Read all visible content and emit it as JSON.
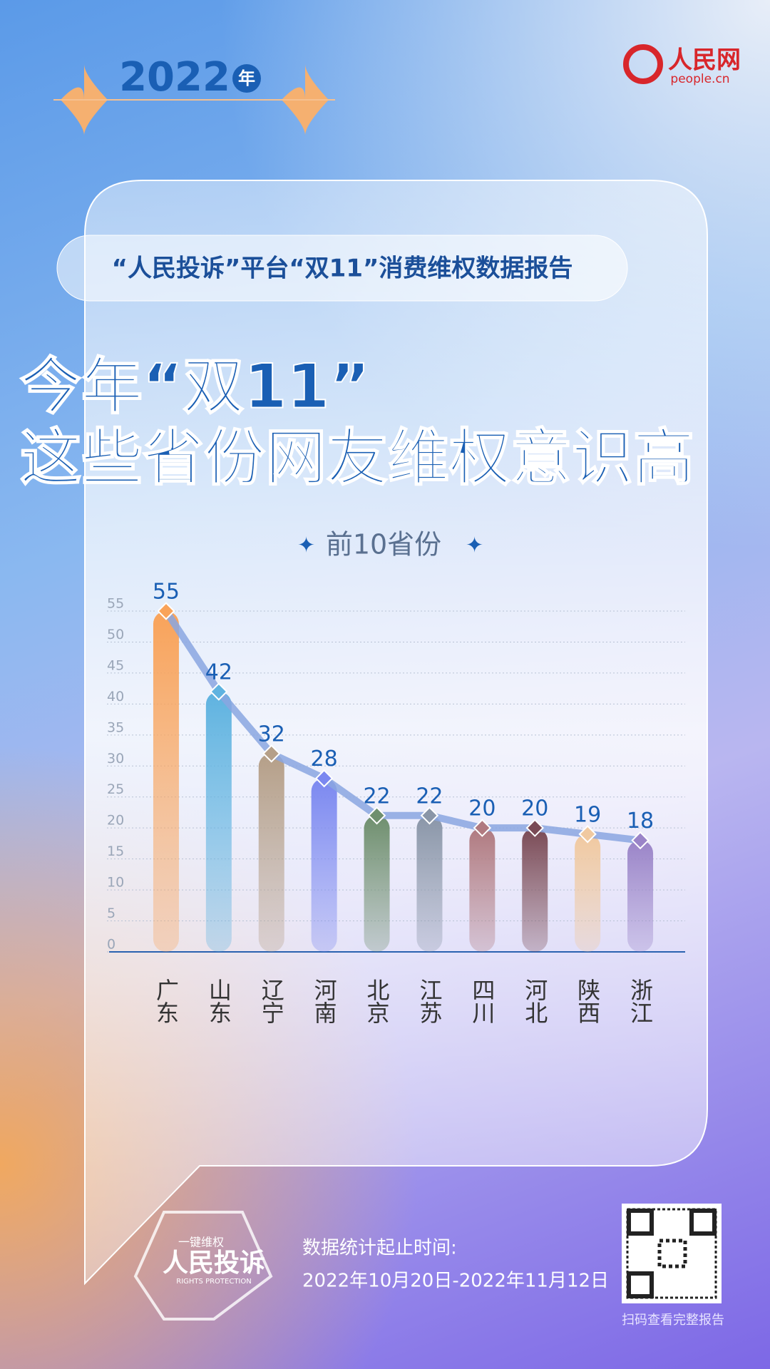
{
  "header": {
    "year": "2022",
    "year_suffix": "年",
    "logo": "人民网",
    "logo_url": "people.cn"
  },
  "report_title": "“人民投诉”平台“双11”消费维权数据报告",
  "headline": [
    "今年“双11”",
    "这些省份网友维权意识高"
  ],
  "chart_data": {
    "type": "bar",
    "title": "前10省份",
    "categories": [
      "广东",
      "山东",
      "辽宁",
      "河南",
      "北京",
      "江苏",
      "四川",
      "河北",
      "陕西",
      "浙江"
    ],
    "values": [
      55,
      42,
      32,
      28,
      22,
      22,
      20,
      20,
      19,
      18
    ],
    "colors": [
      "#f9a35a",
      "#5fb3e0",
      "#b59f88",
      "#7b88f0",
      "#6f8f6e",
      "#8a96a8",
      "#b07a80",
      "#7a4a55",
      "#f0c9a0",
      "#9a84c8"
    ],
    "line_color": "#8aa6e0",
    "ylim": [
      0,
      55
    ],
    "yticks": [
      0,
      5,
      10,
      15,
      20,
      25,
      30,
      35,
      40,
      45,
      50,
      55
    ],
    "grid": true
  },
  "footer": {
    "period_label": "数据统计起止时间:",
    "period": "2022年10月20日-2022年11月12日",
    "qr_caption": "扫码查看完整报告",
    "badge": {
      "top": "一键维权",
      "main": "人民投诉",
      "sub": "RIGHTS PROTECTION"
    }
  }
}
